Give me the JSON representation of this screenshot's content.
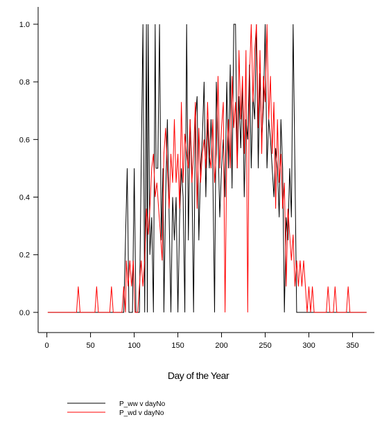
{
  "chart_data": {
    "type": "line",
    "title": "",
    "xlabel": "Day of the Year",
    "ylabel": "",
    "xlim": [
      -10,
      375
    ],
    "ylim": [
      -0.07,
      1.06
    ],
    "xticks": [
      "0",
      "50",
      "100",
      "150",
      "200",
      "250",
      "300",
      "350"
    ],
    "yticks": [
      "0.0",
      "0.2",
      "0.4",
      "0.6",
      "0.8",
      "1.0"
    ],
    "grid": false,
    "legend_position": "bottom-left",
    "series": [
      {
        "name": "P_ww v dayNo",
        "color": "#000000",
        "points": [
          [
            1,
            0
          ],
          [
            88,
            0
          ],
          [
            92,
            0.5
          ],
          [
            94,
            0
          ],
          [
            98,
            0
          ],
          [
            100,
            0.5
          ],
          [
            102,
            0
          ],
          [
            106,
            0
          ],
          [
            108,
            0.5
          ],
          [
            110,
            1.0
          ],
          [
            112,
            0
          ],
          [
            114,
            1.0
          ],
          [
            115,
            0
          ],
          [
            116,
            1.0
          ],
          [
            118,
            0.2
          ],
          [
            120,
            0.33
          ],
          [
            122,
            0
          ],
          [
            124,
            1.0
          ],
          [
            125,
            0.5
          ],
          [
            127,
            0.5
          ],
          [
            129,
            1.0
          ],
          [
            131,
            0.25
          ],
          [
            133,
            0.5
          ],
          [
            134,
            0
          ],
          [
            136,
            0.4
          ],
          [
            138,
            0.67
          ],
          [
            140,
            0.33
          ],
          [
            142,
            0
          ],
          [
            144,
            0.4
          ],
          [
            146,
            0.25
          ],
          [
            148,
            0.4
          ],
          [
            150,
            0
          ],
          [
            152,
            0.33
          ],
          [
            154,
            0.5
          ],
          [
            156,
            0.4
          ],
          [
            158,
            0
          ],
          [
            160,
            1.0
          ],
          [
            162,
            0.25
          ],
          [
            164,
            0.67
          ],
          [
            166,
            0.5
          ],
          [
            168,
            0
          ],
          [
            170,
            0.67
          ],
          [
            172,
            0.75
          ],
          [
            174,
            0.25
          ],
          [
            176,
            0.5
          ],
          [
            178,
            0.6
          ],
          [
            180,
            0.8
          ],
          [
            182,
            0.4
          ],
          [
            184,
            0.67
          ],
          [
            186,
            0.5
          ],
          [
            188,
            0.67
          ],
          [
            190,
            0.5
          ],
          [
            192,
            0
          ],
          [
            194,
            0.8
          ],
          [
            196,
            0.6
          ],
          [
            198,
            0.33
          ],
          [
            200,
            0.5
          ],
          [
            202,
            0.6
          ],
          [
            204,
            0.4
          ],
          [
            206,
            0.8
          ],
          [
            208,
            0.5
          ],
          [
            210,
            0.86
          ],
          [
            212,
            0.43
          ],
          [
            214,
            1.0
          ],
          [
            216,
            1.0
          ],
          [
            218,
            0.5
          ],
          [
            220,
            0.75
          ],
          [
            222,
            0.57
          ],
          [
            224,
            0.8
          ],
          [
            226,
            0.4
          ],
          [
            228,
            0.67
          ],
          [
            230,
            0.6
          ],
          [
            232,
            0.86
          ],
          [
            234,
            0.5
          ],
          [
            236,
            0.75
          ],
          [
            238,
            0.67
          ],
          [
            240,
            1.0
          ],
          [
            242,
            0.5
          ],
          [
            244,
            0.83
          ],
          [
            246,
            0.6
          ],
          [
            248,
            0.71
          ],
          [
            250,
            1.0
          ],
          [
            252,
            0.5
          ],
          [
            254,
            0.67
          ],
          [
            256,
            0.6
          ],
          [
            258,
            0.5
          ],
          [
            260,
            0.4
          ],
          [
            262,
            0.57
          ],
          [
            264,
            0.5
          ],
          [
            266,
            0.33
          ],
          [
            268,
            0.67
          ],
          [
            270,
            0.5
          ],
          [
            272,
            0
          ],
          [
            274,
            0.33
          ],
          [
            276,
            0.25
          ],
          [
            278,
            0.5
          ],
          [
            280,
            0.33
          ],
          [
            282,
            1.0
          ],
          [
            284,
            0.5
          ],
          [
            286,
            0
          ],
          [
            288,
            0
          ],
          [
            292,
            0
          ],
          [
            294,
            0
          ],
          [
            300,
            0
          ],
          [
            366,
            0
          ]
        ]
      },
      {
        "name": "P_wd v dayNo",
        "color": "#ff0000",
        "points": [
          [
            1,
            0
          ],
          [
            34,
            0
          ],
          [
            36,
            0.09
          ],
          [
            38,
            0
          ],
          [
            55,
            0
          ],
          [
            57,
            0.09
          ],
          [
            59,
            0
          ],
          [
            72,
            0
          ],
          [
            74,
            0.09
          ],
          [
            76,
            0
          ],
          [
            86,
            0
          ],
          [
            88,
            0.09
          ],
          [
            90,
            0
          ],
          [
            91,
            0.18
          ],
          [
            93,
            0.09
          ],
          [
            95,
            0.18
          ],
          [
            97,
            0.09
          ],
          [
            99,
            0.18
          ],
          [
            101,
            0
          ],
          [
            104,
            0
          ],
          [
            106,
            0.09
          ],
          [
            108,
            0.18
          ],
          [
            110,
            0.09
          ],
          [
            112,
            0.18
          ],
          [
            114,
            0.36
          ],
          [
            116,
            0.27
          ],
          [
            118,
            0.36
          ],
          [
            120,
            0.5
          ],
          [
            122,
            0.55
          ],
          [
            124,
            0.4
          ],
          [
            126,
            0.45
          ],
          [
            128,
            0.36
          ],
          [
            130,
            0.27
          ],
          [
            132,
            0.18
          ],
          [
            134,
            0.55
          ],
          [
            136,
            0.64
          ],
          [
            138,
            0.5
          ],
          [
            140,
            0.36
          ],
          [
            142,
            0.55
          ],
          [
            144,
            0.45
          ],
          [
            146,
            0.67
          ],
          [
            148,
            0.45
          ],
          [
            150,
            0.55
          ],
          [
            152,
            0.36
          ],
          [
            154,
            0.73
          ],
          [
            156,
            0.45
          ],
          [
            158,
            0.62
          ],
          [
            160,
            0.55
          ],
          [
            162,
            0.5
          ],
          [
            164,
            0.67
          ],
          [
            166,
            0.45
          ],
          [
            168,
            0.55
          ],
          [
            170,
            0.73
          ],
          [
            172,
            0.36
          ],
          [
            174,
            0.64
          ],
          [
            176,
            0.45
          ],
          [
            178,
            0.55
          ],
          [
            180,
            0.6
          ],
          [
            182,
            0.5
          ],
          [
            184,
            0.73
          ],
          [
            186,
            0.55
          ],
          [
            188,
            0.5
          ],
          [
            190,
            0.67
          ],
          [
            192,
            0.45
          ],
          [
            194,
            0.55
          ],
          [
            196,
            0.82
          ],
          [
            198,
            0.5
          ],
          [
            200,
            0.64
          ],
          [
            202,
            0.73
          ],
          [
            204,
            0
          ],
          [
            206,
            0.55
          ],
          [
            208,
            0.67
          ],
          [
            210,
            0.5
          ],
          [
            212,
            0.82
          ],
          [
            214,
            0.64
          ],
          [
            216,
            0.73
          ],
          [
            218,
            0.5
          ],
          [
            220,
            0.91
          ],
          [
            222,
            0.67
          ],
          [
            224,
            0.82
          ],
          [
            226,
            0.55
          ],
          [
            228,
            0.91
          ],
          [
            230,
            0
          ],
          [
            232,
            0.82
          ],
          [
            234,
            1.0
          ],
          [
            236,
            0.73
          ],
          [
            238,
            0.91
          ],
          [
            240,
            1.0
          ],
          [
            242,
            0.64
          ],
          [
            244,
            0.91
          ],
          [
            246,
            0.55
          ],
          [
            248,
            0.82
          ],
          [
            250,
            0.73
          ],
          [
            252,
            1.0
          ],
          [
            254,
            0.67
          ],
          [
            256,
            0.82
          ],
          [
            258,
            0.55
          ],
          [
            260,
            0.73
          ],
          [
            262,
            0.36
          ],
          [
            264,
            0.67
          ],
          [
            266,
            0.45
          ],
          [
            268,
            0.55
          ],
          [
            270,
            0.36
          ],
          [
            272,
            0.45
          ],
          [
            274,
            0.09
          ],
          [
            276,
            0.36
          ],
          [
            278,
            0.27
          ],
          [
            280,
            0.18
          ],
          [
            282,
            0.27
          ],
          [
            284,
            0.09
          ],
          [
            286,
            0.18
          ],
          [
            288,
            0.09
          ],
          [
            290,
            0.18
          ],
          [
            292,
            0.09
          ],
          [
            294,
            0.18
          ],
          [
            296,
            0.09
          ],
          [
            298,
            0
          ],
          [
            300,
            0.09
          ],
          [
            302,
            0
          ],
          [
            304,
            0.09
          ],
          [
            306,
            0
          ],
          [
            320,
            0
          ],
          [
            322,
            0.09
          ],
          [
            324,
            0
          ],
          [
            328,
            0
          ],
          [
            330,
            0.09
          ],
          [
            332,
            0
          ],
          [
            343,
            0
          ],
          [
            345,
            0.09
          ],
          [
            347,
            0
          ],
          [
            366,
            0
          ]
        ]
      }
    ]
  }
}
